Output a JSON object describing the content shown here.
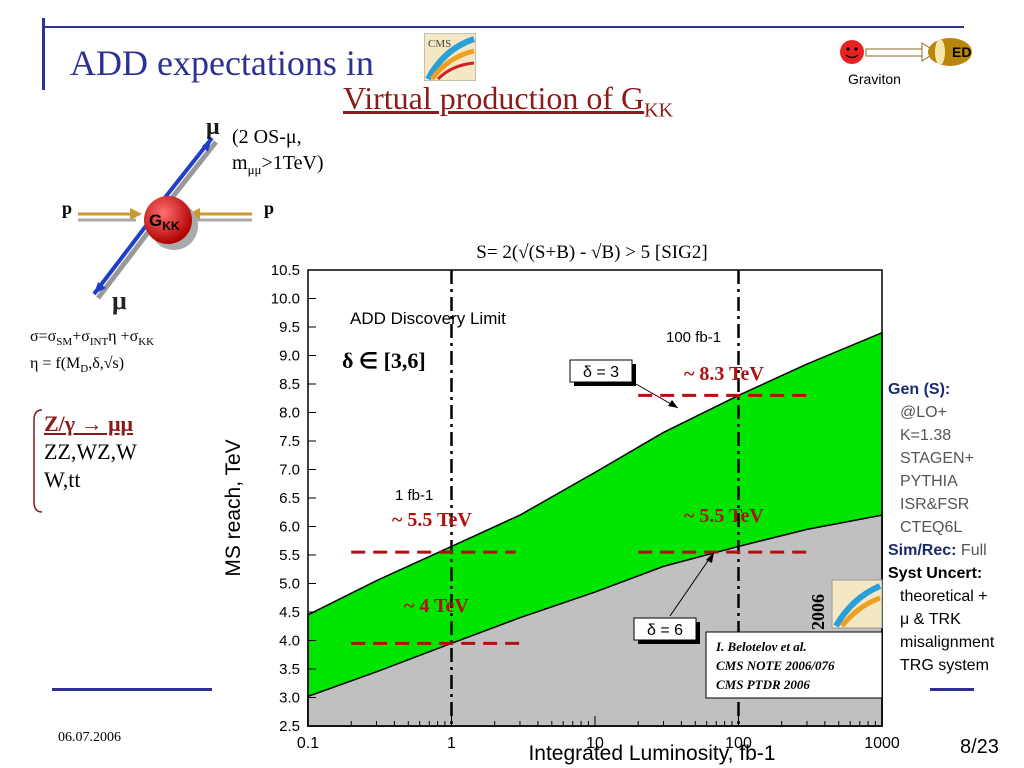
{
  "header": {
    "title": "ADD expectations in",
    "subtitle_main": "Virtual production of G",
    "subtitle_sub": "KK",
    "logo_label": "CMS",
    "graviton_label": "Graviton",
    "ed_label": "ED"
  },
  "diagram": {
    "mu_top": "μ",
    "mu_top_note_line1": "(2 OS-μ,",
    "mu_top_note_line2_pre": "m",
    "mu_top_note_line2_sub": "μμ",
    "mu_top_note_line2_post": ">1TeV)",
    "p_left": "p",
    "p_right": "p",
    "gkk_main": "G",
    "gkk_sub": "KK",
    "mu_bottom": "μ",
    "formula_line1": "σ=σSM+σINTη +σKK",
    "formula_line2": "η = f(MD,δ,√s)"
  },
  "backgrounds": {
    "line1": "Z/γ → μμ",
    "line2": "ZZ,WZ,W",
    "line3": "W,tt"
  },
  "sidebar": {
    "gen_label": "Gen (S):",
    "gen_items": [
      "@LO+",
      "K=1.38",
      "STAGEN+",
      "PYTHIA",
      "ISR&FSR",
      "CTEQ6L"
    ],
    "simrec_label": "Sim/Rec:",
    "simrec_value": "Full",
    "syst_label": "Syst Uncert:",
    "syst_items": [
      "theoretical +",
      "μ & TRK",
      "misalignment",
      "TRG system"
    ]
  },
  "footer": {
    "date": "06.07.2006",
    "page": "8/23"
  },
  "chart_data": {
    "type": "area",
    "title": "S= 2(√(S+B) - √B) > 5 [SIG2]",
    "xlabel": "Integrated Luminosity, fb-1",
    "ylabel": "MS reach, TeV",
    "xscale": "log",
    "xlim": [
      0.1,
      1000
    ],
    "ylim": [
      2.5,
      10.5
    ],
    "xticks": [
      "0.1",
      "1",
      "10",
      "100",
      "1000"
    ],
    "yticks": [
      "2.5",
      "3.0",
      "3.5",
      "4.0",
      "4.5",
      "5.0",
      "5.5",
      "6.0",
      "6.5",
      "7.0",
      "7.5",
      "8.0",
      "8.5",
      "9.0",
      "9.5",
      "10.0",
      "10.5"
    ],
    "series": [
      {
        "name": "δ = 3",
        "color": "#00e600",
        "x": [
          0.1,
          0.3,
          1,
          3,
          10,
          30,
          100,
          300,
          1000
        ],
        "values": [
          4.45,
          5.05,
          5.65,
          6.2,
          6.95,
          7.65,
          8.3,
          8.85,
          9.4
        ]
      },
      {
        "name": "δ = 6",
        "color": "#c0c0c0",
        "x": [
          0.1,
          0.3,
          1,
          3,
          10,
          30,
          100,
          300,
          1000
        ],
        "values": [
          3.02,
          3.45,
          3.95,
          4.4,
          4.85,
          5.3,
          5.65,
          5.95,
          6.2
        ]
      }
    ],
    "annotations": {
      "discovery_limit": "ADD Discovery Limit",
      "delta_range": "δ ∈ [3,6]",
      "lumi_1": "1 fb-1",
      "lumi_100": "100 fb-1",
      "label_83": "~ 8.3 TeV",
      "label_55_right": "~ 5.5 TeV",
      "label_55_left": "~ 5.5 TeV",
      "label_4": "~ 4 TeV",
      "ref_line1": "I. Belotelov et al.",
      "ref_line2": "CMS NOTE 2006/076",
      "ref_line3": "CMS PTDR 2006",
      "year": "2006"
    }
  }
}
